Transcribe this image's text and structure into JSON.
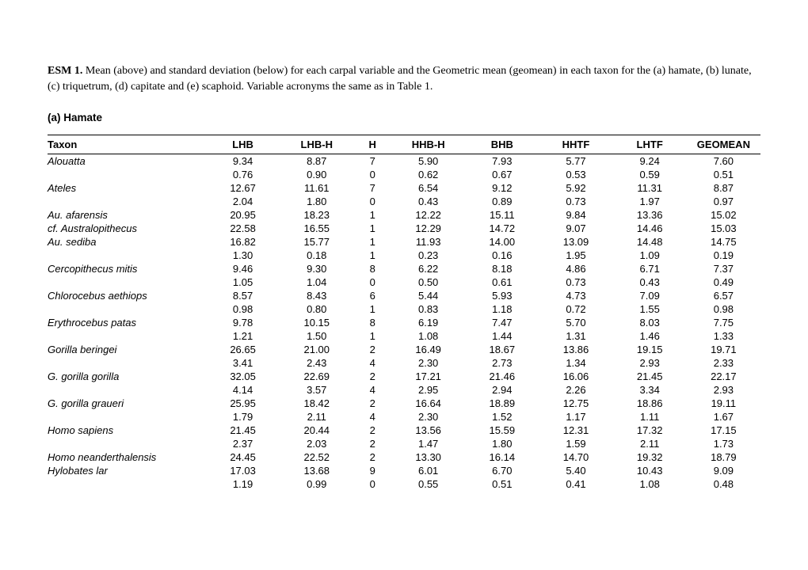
{
  "caption": {
    "label": "ESM 1.",
    "text": " Mean (above) and standard deviation (below)  for each carpal variable and the Geometric mean (geomean) in each taxon for the (a) hamate, (b) lunate, (c) triquetrum, (d) capitate and (e) scaphoid. Variable acronyms the same as in Table 1."
  },
  "subtitle": "(a) Hamate",
  "columns": [
    "Taxon",
    "LHB",
    "LHB-H",
    "H",
    "HHB-H",
    "BHB",
    "HHTF",
    "LHTF",
    "GEOMEAN"
  ],
  "rows": [
    {
      "taxon": "Alouatta",
      "mean": [
        "9.34",
        "8.87",
        "7",
        "5.90",
        "7.93",
        "5.77",
        "9.24",
        "7.60"
      ],
      "sd": [
        "0.76",
        "0.90",
        "0",
        "0.62",
        "0.67",
        "0.53",
        "0.59",
        "0.51"
      ]
    },
    {
      "taxon": "Ateles",
      "mean": [
        "12.67",
        "11.61",
        "7",
        "6.54",
        "9.12",
        "5.92",
        "11.31",
        "8.87"
      ],
      "sd": [
        "2.04",
        "1.80",
        "0",
        "0.43",
        "0.89",
        "0.73",
        "1.97",
        "0.97"
      ]
    },
    {
      "taxon": "Au. afarensis",
      "mean": [
        "20.95",
        "18.23",
        "1",
        "12.22",
        "15.11",
        "9.84",
        "13.36",
        "15.02"
      ],
      "sd": null
    },
    {
      "taxon": "cf. Australopithecus",
      "mean": [
        "22.58",
        "16.55",
        "1",
        "12.29",
        "14.72",
        "9.07",
        "14.46",
        "15.03"
      ],
      "sd": null
    },
    {
      "taxon": "Au. sediba",
      "mean": [
        "16.82",
        "15.77",
        "1",
        "11.93",
        "14.00",
        "13.09",
        "14.48",
        "14.75"
      ],
      "sd": [
        "1.30",
        "0.18",
        "1",
        "0.23",
        "0.16",
        "1.95",
        "1.09",
        "0.19"
      ]
    },
    {
      "taxon": "Cercopithecus mitis",
      "mean": [
        "9.46",
        "9.30",
        "8",
        "6.22",
        "8.18",
        "4.86",
        "6.71",
        "7.37"
      ],
      "sd": [
        "1.05",
        "1.04",
        "0",
        "0.50",
        "0.61",
        "0.73",
        "0.43",
        "0.49"
      ]
    },
    {
      "taxon": "Chlorocebus aethiops",
      "mean": [
        "8.57",
        "8.43",
        "6",
        "5.44",
        "5.93",
        "4.73",
        "7.09",
        "6.57"
      ],
      "sd": [
        "0.98",
        "0.80",
        "1",
        "0.83",
        "1.18",
        "0.72",
        "1.55",
        "0.98"
      ]
    },
    {
      "taxon": "Erythrocebus patas",
      "mean": [
        "9.78",
        "10.15",
        "8",
        "6.19",
        "7.47",
        "5.70",
        "8.03",
        "7.75"
      ],
      "sd": [
        "1.21",
        "1.50",
        "1",
        "1.08",
        "1.44",
        "1.31",
        "1.46",
        "1.33"
      ]
    },
    {
      "taxon": "Gorilla beringei",
      "mean": [
        "26.65",
        "21.00",
        "2",
        "16.49",
        "18.67",
        "13.86",
        "19.15",
        "19.71"
      ],
      "sd": [
        "3.41",
        "2.43",
        "4",
        "2.30",
        "2.73",
        "1.34",
        "2.93",
        "2.33"
      ]
    },
    {
      "taxon": "G. gorilla gorilla",
      "mean": [
        "32.05",
        "22.69",
        "2",
        "17.21",
        "21.46",
        "16.06",
        "21.45",
        "22.17"
      ],
      "sd": [
        "4.14",
        "3.57",
        "4",
        "2.95",
        "2.94",
        "2.26",
        "3.34",
        "2.93"
      ]
    },
    {
      "taxon": "G. gorilla graueri",
      "mean": [
        "25.95",
        "18.42",
        "2",
        "16.64",
        "18.89",
        "12.75",
        "18.86",
        "19.11"
      ],
      "sd": [
        "1.79",
        "2.11",
        "4",
        "2.30",
        "1.52",
        "1.17",
        "1.11",
        "1.67"
      ]
    },
    {
      "taxon": "Homo sapiens",
      "mean": [
        "21.45",
        "20.44",
        "2",
        "13.56",
        "15.59",
        "12.31",
        "17.32",
        "17.15"
      ],
      "sd": [
        "2.37",
        "2.03",
        "2",
        "1.47",
        "1.80",
        "1.59",
        "2.11",
        "1.73"
      ]
    },
    {
      "taxon": "Homo neanderthalensis",
      "mean": [
        "24.45",
        "22.52",
        "2",
        "13.30",
        "16.14",
        "14.70",
        "19.32",
        "18.79"
      ],
      "sd": null
    },
    {
      "taxon": "Hylobates lar",
      "mean": [
        "17.03",
        "13.68",
        "9",
        "6.01",
        "6.70",
        "5.40",
        "10.43",
        "9.09"
      ],
      "sd": [
        "1.19",
        "0.99",
        "0",
        "0.55",
        "0.51",
        "0.41",
        "1.08",
        "0.48"
      ]
    }
  ]
}
